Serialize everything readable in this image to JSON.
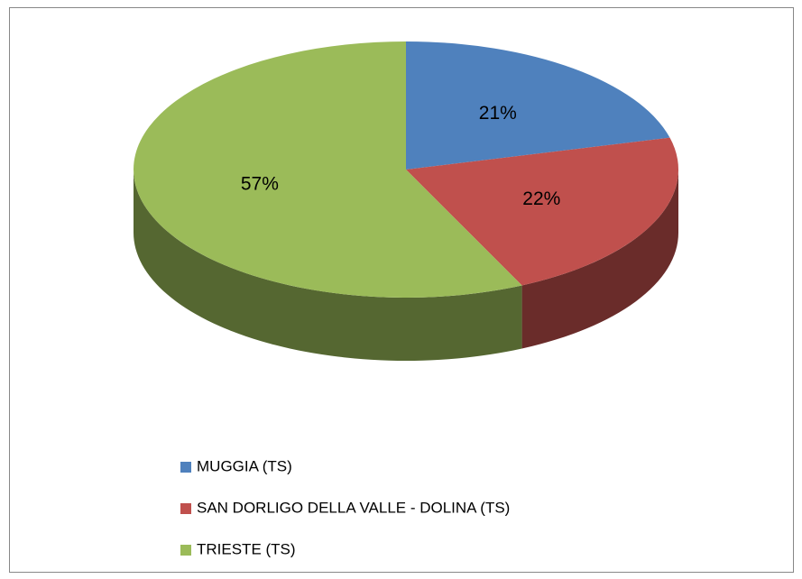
{
  "chart_data": {
    "type": "pie",
    "categories": [
      "MUGGIA (TS)",
      "SAN DORLIGO DELLA VALLE - DOLINA (TS)",
      "TRIESTE (TS)"
    ],
    "values": [
      21,
      22,
      57
    ],
    "value_labels": [
      "21%",
      "22%",
      "57%"
    ],
    "colors": [
      "#4f81bd",
      "#c0504d",
      "#9bbb59"
    ],
    "legend": "bottom"
  }
}
